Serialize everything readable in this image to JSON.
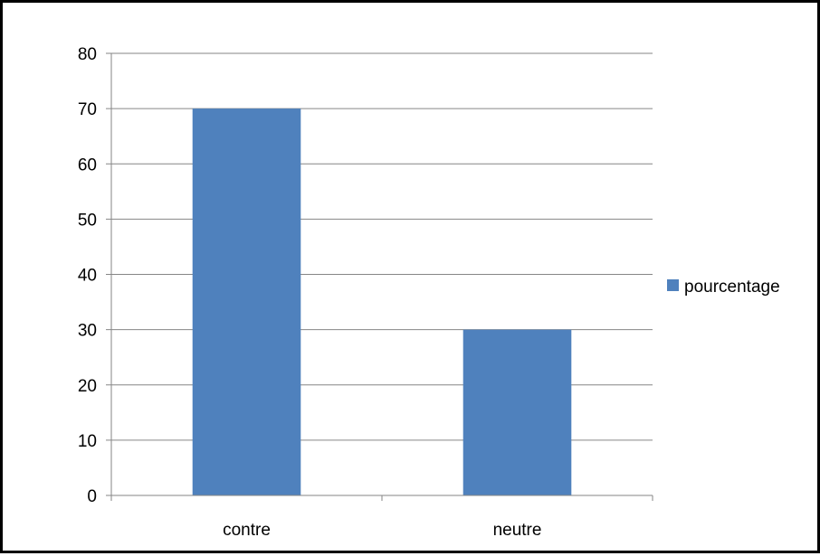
{
  "chart_data": {
    "type": "bar",
    "title": "",
    "xlabel": "",
    "ylabel": "",
    "categories": [
      "contre",
      "neutre"
    ],
    "series": [
      {
        "name": "pourcentage",
        "values": [
          70,
          30
        ],
        "color": "#4F81BD"
      }
    ],
    "ylim": [
      0,
      80
    ],
    "yticks": [
      0,
      10,
      20,
      30,
      40,
      50,
      60,
      70,
      80
    ],
    "grid": true,
    "legend": "right"
  }
}
